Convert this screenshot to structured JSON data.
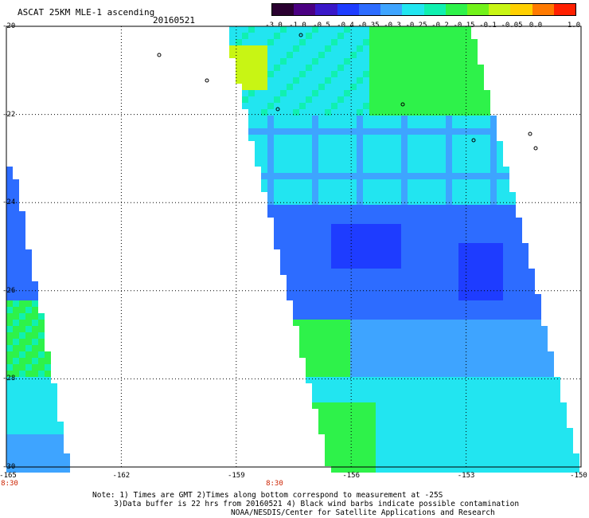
{
  "header": {
    "title": "ASCAT 25KM MLE-1 ascending",
    "date": "20160521"
  },
  "colorbar": {
    "labels": [
      "-3.0",
      "-1.0",
      "-0.5",
      "-0.4",
      "-0.35",
      "-0.3",
      "-0.25",
      "-0.2",
      "-0.15",
      "-0.1",
      "-0.05",
      "0.0",
      "1.0"
    ],
    "colors": [
      "#2a0030",
      "#4b0082",
      "#3a18c8",
      "#1e3cff",
      "#2d6cff",
      "#3ea4ff",
      "#22e5f0",
      "#10f0b0",
      "#2ef24a",
      "#72f21a",
      "#c8f514",
      "#ffd000",
      "#ff7a00",
      "#ff2000"
    ]
  },
  "chart_data": {
    "type": "heatmap",
    "title": "ASCAT 25KM MLE-1 ascending",
    "date": "20160521",
    "xlim": [
      -165,
      -150
    ],
    "ylim": [
      -30,
      -20
    ],
    "x_ticks": [
      "-165",
      "-162",
      "-159",
      "-156",
      "-153",
      "-150"
    ],
    "y_ticks": [
      "-20",
      "-22",
      "-24",
      "-26",
      "-28",
      "-30"
    ],
    "times": [
      {
        "label": "8:30",
        "lon": -165
      },
      {
        "label": "8:30",
        "lon": -158
      }
    ]
  },
  "notes": {
    "line1": "Note: 1) Times are GMT 2)Times along bottom correspond to measurement at -25S",
    "line2": "3)Data buffer is 22 hrs from 20160521 4) Black wind barbs indicate possible contamination",
    "line3": "NOAA/NESDIS/Center for Satellite Applications and Research"
  }
}
